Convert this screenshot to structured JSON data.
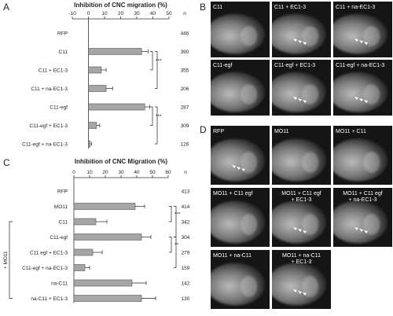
{
  "panels": {
    "A": "A",
    "B": "B",
    "C": "C",
    "D": "D"
  },
  "colors": {
    "bar_fill": "#a6a6a6",
    "bar_stroke": "#555555",
    "micro_bg": "#151515"
  },
  "chart_data": [
    {
      "id": "A",
      "type": "bar",
      "orientation": "horizontal",
      "title": "Inhibition of CNC migration (%)",
      "n_header": "n",
      "xlim": [
        -10,
        50
      ],
      "xticks": [
        -10,
        0,
        10,
        20,
        30,
        40,
        50
      ],
      "categories": [
        "RFP",
        "C11",
        "C11 + EC1-3",
        "C11 + na-EC1-3",
        "C11-egf",
        "C11-egf + EC1-3",
        "C11-egf + na-EC1-3"
      ],
      "values": [
        0,
        33,
        8,
        11,
        35,
        5,
        1
      ],
      "errors": [
        0,
        4,
        3,
        4,
        3,
        2,
        1
      ],
      "n": [
        "446",
        "390",
        "355",
        "206",
        "287",
        "309",
        "126"
      ],
      "significance": [
        {
          "from": 1,
          "to": 2,
          "label": "***"
        },
        {
          "from": 1,
          "to": 3,
          "label": ""
        },
        {
          "from": 4,
          "to": 5,
          "label": "***"
        },
        {
          "from": 4,
          "to": 6,
          "label": ""
        }
      ]
    },
    {
      "id": "C",
      "type": "bar",
      "orientation": "horizontal",
      "title": "Inhibition of CNC Migration (%)",
      "n_header": "n",
      "xlim": [
        0,
        60
      ],
      "xticks": [
        0,
        10,
        20,
        30,
        40,
        50,
        60
      ],
      "categories": [
        "RFP",
        "MO11",
        "C11",
        "C11-egf",
        "C11 egf + EC1-3",
        "C11-egf + na-EC1-3",
        "na-C11",
        "na-C11 + EC1-3"
      ],
      "values": [
        0,
        39,
        14,
        43,
        12,
        7,
        37,
        43
      ],
      "errors": [
        0,
        6,
        7,
        6,
        6,
        3,
        9,
        9
      ],
      "n": [
        "413",
        "414",
        "342",
        "304",
        "279",
        "159",
        "142",
        "130"
      ],
      "group_label": "+ MO11",
      "group_rows": [
        2,
        7
      ],
      "significance": [
        {
          "from": 1,
          "to": 2,
          "label": "***"
        },
        {
          "from": 1,
          "to": 3,
          "label": ""
        },
        {
          "from": 3,
          "to": 4,
          "label": "**"
        },
        {
          "from": 3,
          "to": 5,
          "label": ""
        }
      ]
    }
  ],
  "micrographs_B": [
    {
      "label": "C11",
      "arrows": false
    },
    {
      "label": "C11 + EC1-3",
      "arrows": true
    },
    {
      "label": "C11 + na-EC1-3",
      "arrows": true
    },
    {
      "label": "C11-egf",
      "arrows": false
    },
    {
      "label": "C11-egf + EC1-3",
      "arrows": true
    },
    {
      "label": "C11-egf + na-EC1-3",
      "arrows": true
    }
  ],
  "micrographs_D": [
    {
      "label": "RFP",
      "arrows": true
    },
    {
      "label": "MO11",
      "arrows": false
    },
    {
      "label": "MO11 + C11",
      "arrows": false
    },
    {
      "label": "MO11 + C11 egf",
      "arrows": false
    },
    {
      "label": "MO11 + C11 egf\n+ EC1-3",
      "arrows": true
    },
    {
      "label": "MO11 + C11 egf\n+ na-EC1-3",
      "arrows": true
    },
    {
      "label": "MO11 + na-C11",
      "arrows": false
    },
    {
      "label": "MO11 + na-C11\n+ EC1-3",
      "arrows": true
    }
  ]
}
